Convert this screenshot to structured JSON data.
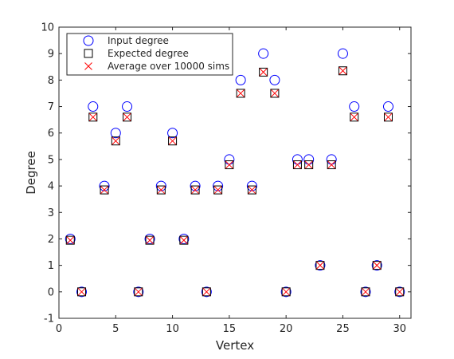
{
  "chart_data": {
    "type": "scatter",
    "xlabel": "Vertex",
    "ylabel": "Degree",
    "xlim": [
      0,
      31
    ],
    "ylim": [
      -1,
      10
    ],
    "xticks": [
      0,
      5,
      10,
      15,
      20,
      25,
      30
    ],
    "yticks": [
      -1,
      0,
      1,
      2,
      3,
      4,
      5,
      6,
      7,
      8,
      9,
      10
    ],
    "x_tick_labels": [
      "0",
      "5",
      "10",
      "15",
      "20",
      "25",
      "30"
    ],
    "y_tick_labels": [
      "-1",
      "0",
      "1",
      "2",
      "3",
      "4",
      "5",
      "6",
      "7",
      "8",
      "9",
      "10"
    ],
    "grid": false,
    "legend_position": "top-left",
    "x": [
      1,
      2,
      3,
      4,
      5,
      6,
      7,
      8,
      9,
      10,
      11,
      12,
      13,
      14,
      15,
      16,
      17,
      18,
      19,
      20,
      21,
      22,
      23,
      24,
      25,
      26,
      27,
      28,
      29,
      30
    ],
    "series": [
      {
        "name": "Input degree",
        "marker": "circle",
        "color": "#0000ff",
        "values": [
          2,
          0,
          7,
          4,
          6,
          7,
          0,
          2,
          4,
          6,
          2,
          4,
          0,
          4,
          5,
          8,
          4,
          9,
          8,
          0,
          5,
          5,
          1,
          5,
          9,
          7,
          0,
          1,
          7,
          0
        ]
      },
      {
        "name": "Expected degree",
        "marker": "square",
        "color": "#000000",
        "values": [
          1.95,
          0,
          6.6,
          3.85,
          5.7,
          6.6,
          0,
          1.95,
          3.85,
          5.7,
          1.95,
          3.85,
          0,
          3.85,
          4.8,
          7.5,
          3.85,
          8.3,
          7.5,
          0,
          4.8,
          4.8,
          1,
          4.8,
          8.35,
          6.6,
          0,
          1,
          6.6,
          0
        ]
      },
      {
        "name": "Average over 10000 sims",
        "marker": "x",
        "color": "#ff0000",
        "values": [
          1.95,
          0,
          6.6,
          3.85,
          5.7,
          6.6,
          0,
          1.95,
          3.85,
          5.7,
          1.95,
          3.85,
          0,
          3.85,
          4.8,
          7.5,
          3.85,
          8.3,
          7.5,
          0,
          4.8,
          4.8,
          1,
          4.8,
          8.35,
          6.6,
          0,
          1,
          6.6,
          0
        ]
      }
    ]
  }
}
